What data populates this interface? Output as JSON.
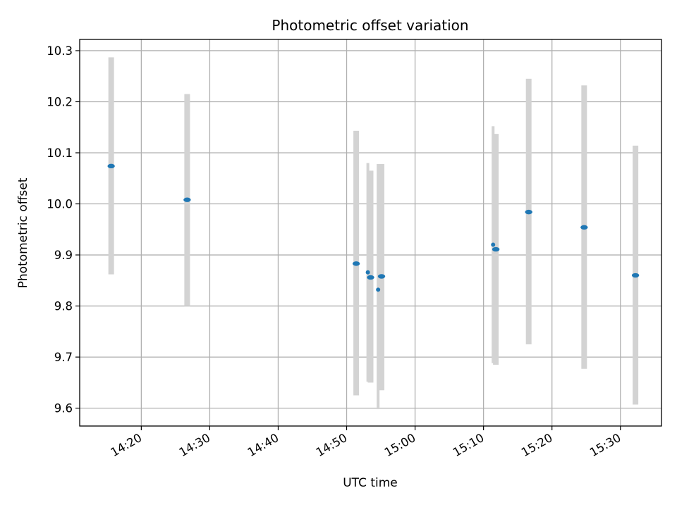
{
  "chart_data": {
    "type": "scatter",
    "title": "Photometric offset variation",
    "xlabel": "UTC time",
    "ylabel": "Photometric offset",
    "grid": true,
    "x_ticks": [
      "14:20",
      "14:30",
      "14:40",
      "14:50",
      "15:00",
      "15:10",
      "15:20",
      "15:30"
    ],
    "x_range": [
      "14:11",
      "15:36"
    ],
    "y_ticks": [
      "9.6",
      "9.7",
      "9.8",
      "9.9",
      "10.0",
      "10.1",
      "10.2",
      "10.3"
    ],
    "ylim": [
      9.565,
      10.322
    ],
    "error_bar_color": "#d3d3d3",
    "point_color": "#1f77b4",
    "series": [
      {
        "points": [
          {
            "t": "14:15.6",
            "y": 10.074,
            "low": 9.862,
            "high": 10.287,
            "size": "large"
          },
          {
            "t": "14:26.7",
            "y": 10.008,
            "low": 9.8,
            "high": 10.215,
            "size": "large"
          },
          {
            "t": "14:51.4",
            "y": 9.883,
            "low": 9.625,
            "high": 10.143,
            "size": "large"
          },
          {
            "t": "14:53.1",
            "y": 9.866,
            "low": 9.652,
            "high": 10.08,
            "size": "small"
          },
          {
            "t": "14:53.5",
            "y": 9.856,
            "low": 9.65,
            "high": 10.065,
            "size": "large"
          },
          {
            "t": "14:54.6",
            "y": 9.832,
            "low": 9.598,
            "high": 10.078,
            "size": "small"
          },
          {
            "t": "14:55.1",
            "y": 9.858,
            "low": 9.635,
            "high": 10.078,
            "size": "large"
          },
          {
            "t": "15:11.4",
            "y": 9.92,
            "low": 9.688,
            "high": 10.152,
            "size": "small"
          },
          {
            "t": "15:11.8",
            "y": 9.911,
            "low": 9.685,
            "high": 10.137,
            "size": "large"
          },
          {
            "t": "15:16.6",
            "y": 9.984,
            "low": 9.725,
            "high": 10.245,
            "size": "large"
          },
          {
            "t": "15:24.7",
            "y": 9.954,
            "low": 9.677,
            "high": 10.232,
            "size": "large"
          },
          {
            "t": "15:32.2",
            "y": 9.86,
            "low": 9.607,
            "high": 10.114,
            "size": "large"
          }
        ]
      }
    ]
  }
}
